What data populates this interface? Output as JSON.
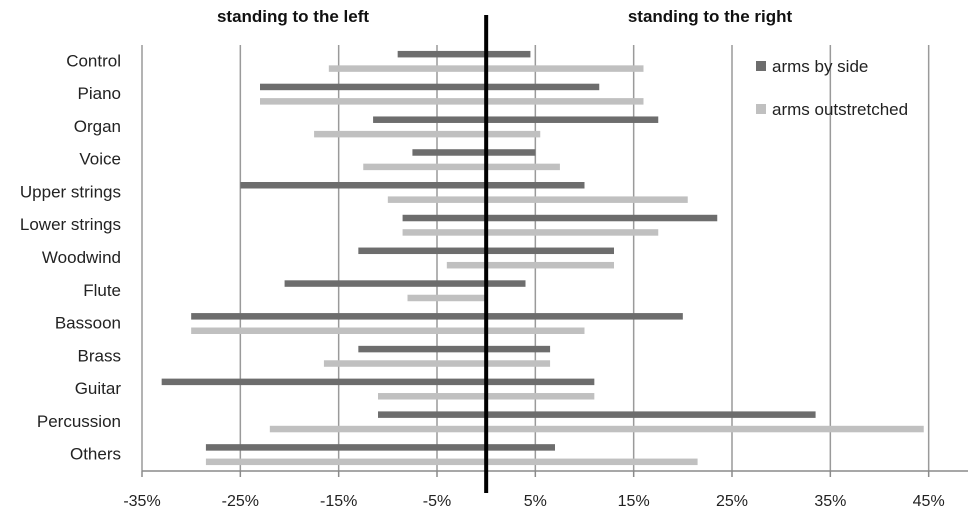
{
  "chart_data": {
    "type": "bar",
    "orientation": "horizontal",
    "headers": {
      "left": "standing to the left",
      "right": "standing to the right"
    },
    "categories": [
      "Control",
      "Piano",
      "Organ",
      "Voice",
      "Upper strings",
      "Lower strings",
      "Woodwind",
      "Flute",
      "Bassoon",
      "Brass",
      "Guitar",
      "Percussion",
      "Others"
    ],
    "series": [
      {
        "name": "arms by side",
        "color": "#6d6d6d",
        "values": [
          [
            -9,
            4.5
          ],
          [
            -23,
            11.5
          ],
          [
            -11.5,
            17.5
          ],
          [
            -7.5,
            5
          ],
          [
            -25,
            10
          ],
          [
            -8.5,
            23.5
          ],
          [
            -13,
            13
          ],
          [
            -20.5,
            4
          ],
          [
            -30,
            20
          ],
          [
            -13,
            6.5
          ],
          [
            -33,
            11
          ],
          [
            -11,
            33.5
          ],
          [
            -28.5,
            7
          ]
        ]
      },
      {
        "name": "arms outstretched",
        "color": "#c0c0c0",
        "values": [
          [
            -16,
            16
          ],
          [
            -23,
            16
          ],
          [
            -17.5,
            5.5
          ],
          [
            -12.5,
            7.5
          ],
          [
            -10,
            20.5
          ],
          [
            -8.5,
            17.5
          ],
          [
            -4,
            13
          ],
          [
            -8,
            0
          ],
          [
            -30,
            10
          ],
          [
            -16.5,
            6.5
          ],
          [
            -11,
            11
          ],
          [
            -22,
            44.5
          ],
          [
            -28.5,
            21.5
          ]
        ]
      }
    ],
    "xlim": [
      -35,
      49
    ],
    "xticks": [
      -35,
      -25,
      -15,
      -5,
      5,
      15,
      25,
      35,
      45
    ],
    "xtick_labels": [
      "-35%",
      "-25%",
      "-15%",
      "-5%",
      "5%",
      "15%",
      "25%",
      "35%",
      "45%"
    ],
    "center_line_value": 0,
    "grid": "vertical",
    "legend_position": "top-right"
  }
}
